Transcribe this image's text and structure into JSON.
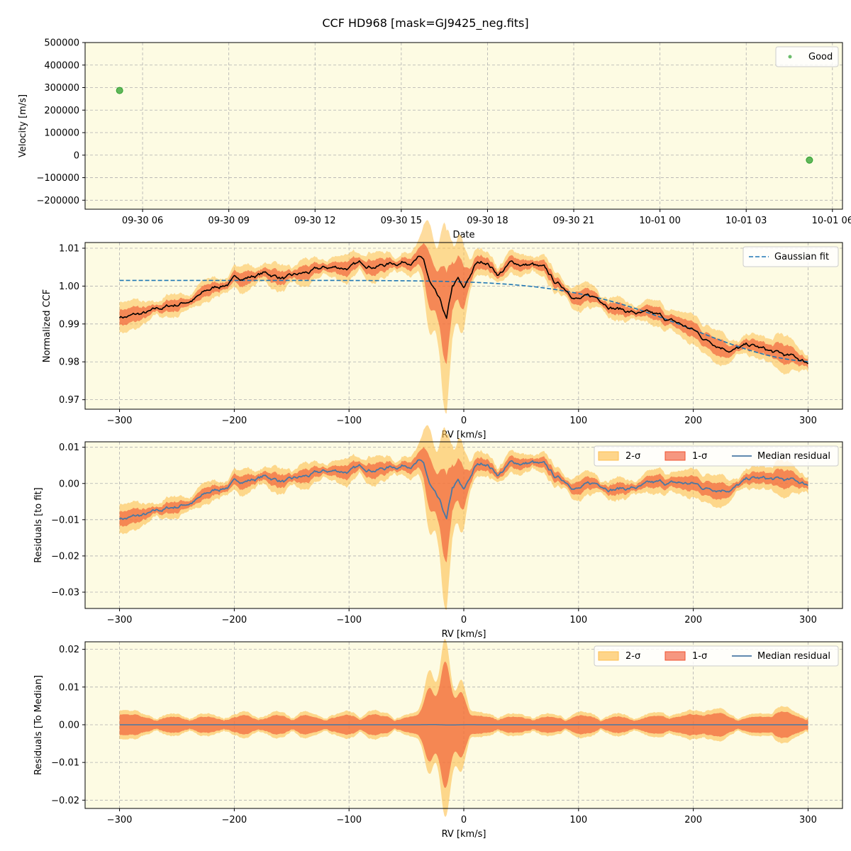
{
  "figure": {
    "title": "CCF HD968 [mask=GJ9425_neg.fits]",
    "panel_bg": "#fdfbe3",
    "grid_color": "#b0b0b0"
  },
  "chart_data": [
    {
      "type": "scatter",
      "xlabel": "Date",
      "ylabel": "Velocity [m/s]",
      "x_ticks": [
        "09-30 06",
        "09-30 09",
        "09-30 12",
        "09-30 15",
        "09-30 18",
        "09-30 21",
        "10-01 00",
        "10-01 03",
        "10-01 06"
      ],
      "x_tick_hours": [
        6,
        9,
        12,
        15,
        18,
        21,
        24,
        27,
        30
      ],
      "xlim_hours": [
        4.0,
        30.35
      ],
      "ylim": [
        -240000,
        500000
      ],
      "y_ticks": [
        500000,
        400000,
        300000,
        200000,
        100000,
        0,
        -100000,
        -200000
      ],
      "y_tick_labels": [
        "500000",
        "400000",
        "300000",
        "200000",
        "100000",
        "0",
        "−100000",
        "−200000"
      ],
      "points_hours": [
        5.2,
        29.2
      ],
      "points_velocity": [
        287000,
        -22000
      ],
      "series": [
        {
          "name": "Good",
          "color": "#2ca02c"
        }
      ],
      "legend": "top-right",
      "grid": true
    },
    {
      "type": "line",
      "xlabel": "RV [km/s]",
      "ylabel": "Normalized CCF",
      "xlim": [
        -330,
        330
      ],
      "ylim": [
        0.9675,
        1.0115
      ],
      "x_ticks": [
        -300,
        -200,
        -100,
        0,
        100,
        200,
        300
      ],
      "x_tick_labels": [
        "−300",
        "−200",
        "−100",
        "0",
        "100",
        "200",
        "300"
      ],
      "y_ticks": [
        0.97,
        0.98,
        0.99,
        1.0,
        1.01
      ],
      "y_tick_labels": [
        "0.97",
        "0.98",
        "0.99",
        "1.00",
        "1.01"
      ],
      "gaussian": {
        "baseline": 1.0015,
        "amplitude": 0.0215,
        "center": 310,
        "sigma": 110
      },
      "series": [
        {
          "name": "Gaussian fit",
          "color": "#1f77b4"
        }
      ],
      "legend": "top-right",
      "grid": true
    },
    {
      "type": "line",
      "xlabel": "RV [km/s]",
      "ylabel": "Residuals [to fit]",
      "xlim": [
        -330,
        330
      ],
      "ylim": [
        -0.0345,
        0.0115
      ],
      "x_ticks": [
        -300,
        -200,
        -100,
        0,
        100,
        200,
        300
      ],
      "x_tick_labels": [
        "−300",
        "−200",
        "−100",
        "0",
        "100",
        "200",
        "300"
      ],
      "y_ticks": [
        0.01,
        0.0,
        -0.01,
        -0.02,
        -0.03
      ],
      "y_tick_labels": [
        "0.01",
        "0.00",
        "−0.01",
        "−0.02",
        "−0.03"
      ],
      "residual_profile_x": [
        -300,
        -270,
        -250,
        -200,
        -175,
        -150,
        -100,
        -60,
        -40,
        -35,
        -30,
        -20,
        -15,
        -10,
        -5,
        0,
        10,
        20,
        30,
        40,
        60,
        70,
        80,
        100,
        120,
        150,
        170,
        200,
        210,
        230,
        250,
        270,
        280,
        300
      ],
      "residual_profile_y": [
        -0.0095,
        -0.009,
        -0.007,
        0.0,
        0.002,
        0.0005,
        0.003,
        0.005,
        0.007,
        0.006,
        0.0,
        -0.007,
        -0.0115,
        -0.003,
        -0.001,
        -0.004,
        0.003,
        0.0045,
        0.002,
        0.005,
        0.0055,
        0.004,
        0.0005,
        -0.001,
        -0.0005,
        -0.0005,
        -0.001,
        -0.001,
        -0.002,
        -0.0005,
        0.0015,
        0.0005,
        0.0,
        -0.001
      ],
      "series": [
        {
          "name": "2-σ",
          "color": "#fdbf4f"
        },
        {
          "name": "1-σ",
          "color": "#f0522f"
        },
        {
          "name": "Median residual",
          "color": "#4a78a4"
        }
      ],
      "legend": "top-right",
      "grid": true
    },
    {
      "type": "line",
      "xlabel": "RV [km/s]",
      "ylabel": "Residuals [To Median]",
      "xlim": [
        -330,
        330
      ],
      "ylim": [
        -0.0222,
        0.022
      ],
      "x_ticks": [
        -300,
        -200,
        -100,
        0,
        100,
        200,
        300
      ],
      "x_tick_labels": [
        "−300",
        "−200",
        "−100",
        "0",
        "100",
        "200",
        "300"
      ],
      "y_ticks": [
        0.02,
        0.01,
        0.0,
        -0.01,
        -0.02
      ],
      "y_tick_labels": [
        "0.02",
        "0.01",
        "0.00",
        "−0.01",
        "−0.02"
      ],
      "series": [
        {
          "name": "2-σ",
          "color": "#fdbf4f"
        },
        {
          "name": "1-σ",
          "color": "#f0522f"
        },
        {
          "name": "Median residual",
          "color": "#4a78a4"
        }
      ],
      "legend": "top-right",
      "grid": true
    }
  ]
}
